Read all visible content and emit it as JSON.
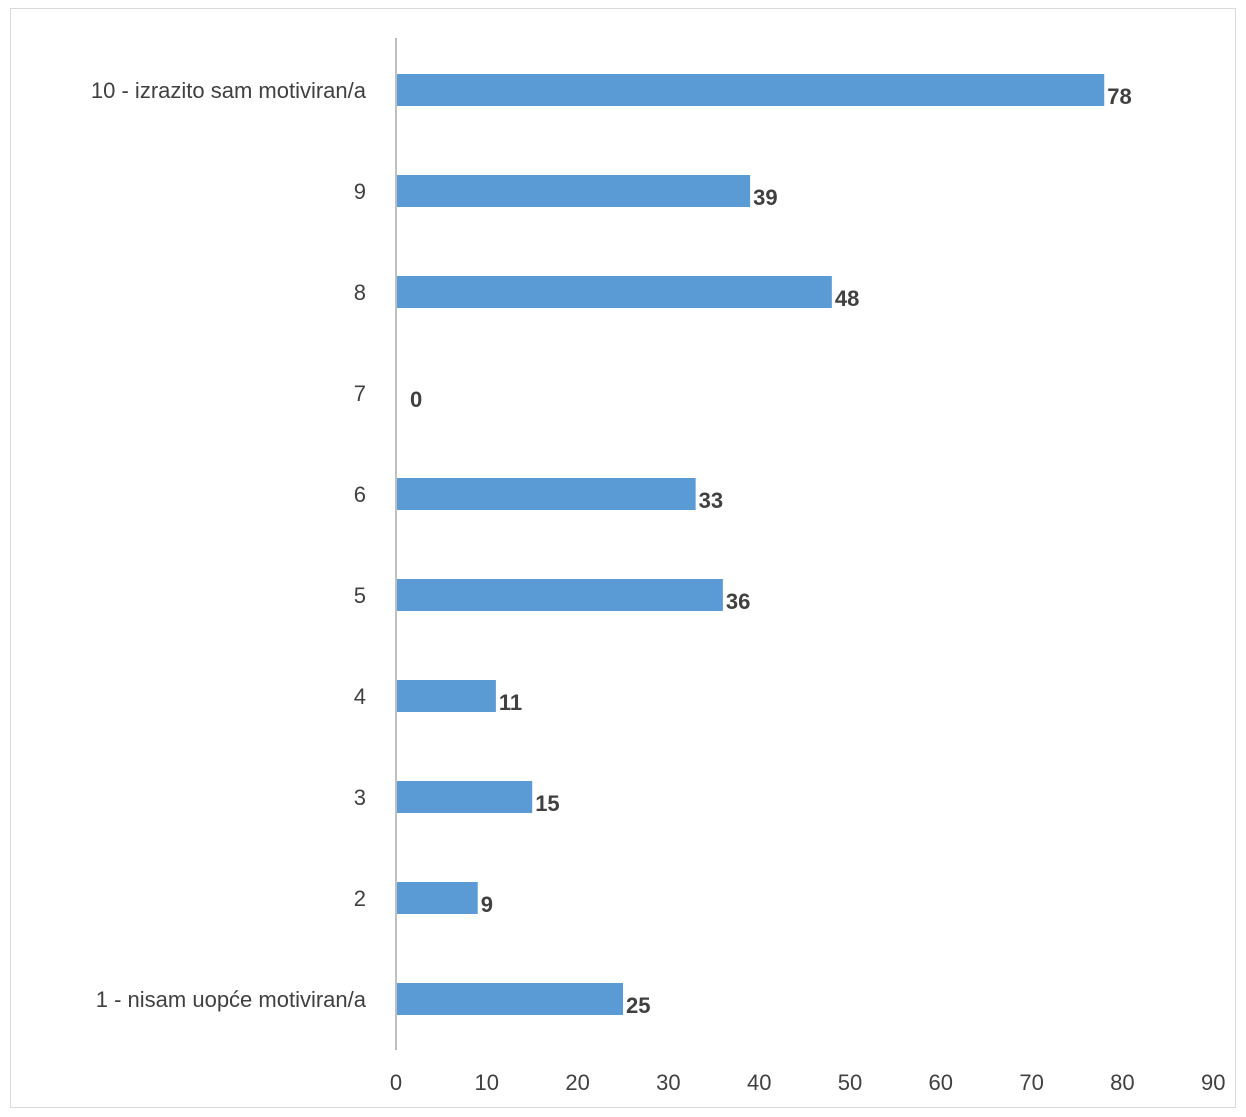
{
  "chart_data": {
    "type": "bar",
    "orientation": "horizontal",
    "categories": [
      "1 - nisam uopće motiviran/a",
      "2",
      "3",
      "4",
      "5",
      "6",
      "7",
      "8",
      "9",
      "10 - izrazito sam motiviran/a"
    ],
    "values": [
      25,
      9,
      15,
      11,
      36,
      33,
      0,
      48,
      39,
      78
    ],
    "xlim": [
      0,
      90
    ],
    "xticks": [
      0,
      10,
      20,
      30,
      40,
      50,
      60,
      70,
      80,
      90
    ],
    "data_labels": true,
    "grid": false,
    "legend": "none",
    "bar_color": "#5b9bd5",
    "axis_color": "#bfbfbf",
    "text_color": "#404040"
  }
}
